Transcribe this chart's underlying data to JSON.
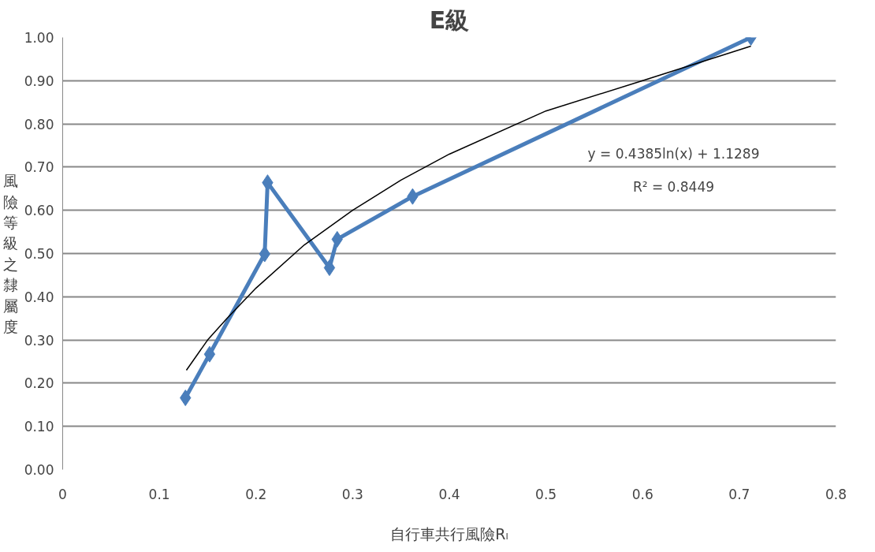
{
  "chart_data": {
    "type": "line",
    "title": "E級",
    "xlabel": "自行車共行風險Rₗ",
    "ylabel": "風險等級之隸屬度",
    "series": [
      {
        "color": "#4a7ebb",
        "x": [
          0.127,
          0.152,
          0.209,
          0.212,
          0.276,
          0.284,
          0.362,
          0.712
        ],
        "values": [
          0.166,
          0.267,
          0.499,
          0.664,
          0.467,
          0.533,
          0.632,
          1.0
        ],
        "marker": "diamond"
      },
      {
        "type": "line",
        "color": "#000000",
        "x": [
          0.128,
          0.15,
          0.17,
          0.2,
          0.25,
          0.3,
          0.35,
          0.4,
          0.5,
          0.6,
          0.712
        ],
        "values": [
          0.23,
          0.3,
          0.35,
          0.42,
          0.52,
          0.6,
          0.67,
          0.73,
          0.83,
          0.9,
          0.98
        ],
        "marker": "none"
      }
    ],
    "annotations": [
      "y = 0.4385ln(x) + 1.1289",
      "R² = 0.8449"
    ],
    "xlim": [
      0,
      0.8
    ],
    "xticks": [
      0,
      0.1,
      0.2,
      0.3,
      0.4,
      0.5,
      0.6,
      0.7,
      0.8
    ],
    "ylim": [
      0,
      1.0
    ],
    "yticks": [
      {
        "value": 0,
        "label": "0.00"
      },
      {
        "value": 0.1,
        "label": "0.10"
      },
      {
        "value": 0.2,
        "label": "0.20"
      },
      {
        "value": 0.3,
        "label": "0.30"
      },
      {
        "value": 0.4,
        "label": "0.40"
      },
      {
        "value": 0.5,
        "label": "0.50"
      },
      {
        "value": 0.6,
        "label": "0.60"
      },
      {
        "value": 0.7,
        "label": "0.70"
      },
      {
        "value": 0.8,
        "label": "0.80"
      },
      {
        "value": 0.9,
        "label": "0.90"
      },
      {
        "value": 1.0,
        "label": "1.00"
      }
    ],
    "grid": "y"
  }
}
